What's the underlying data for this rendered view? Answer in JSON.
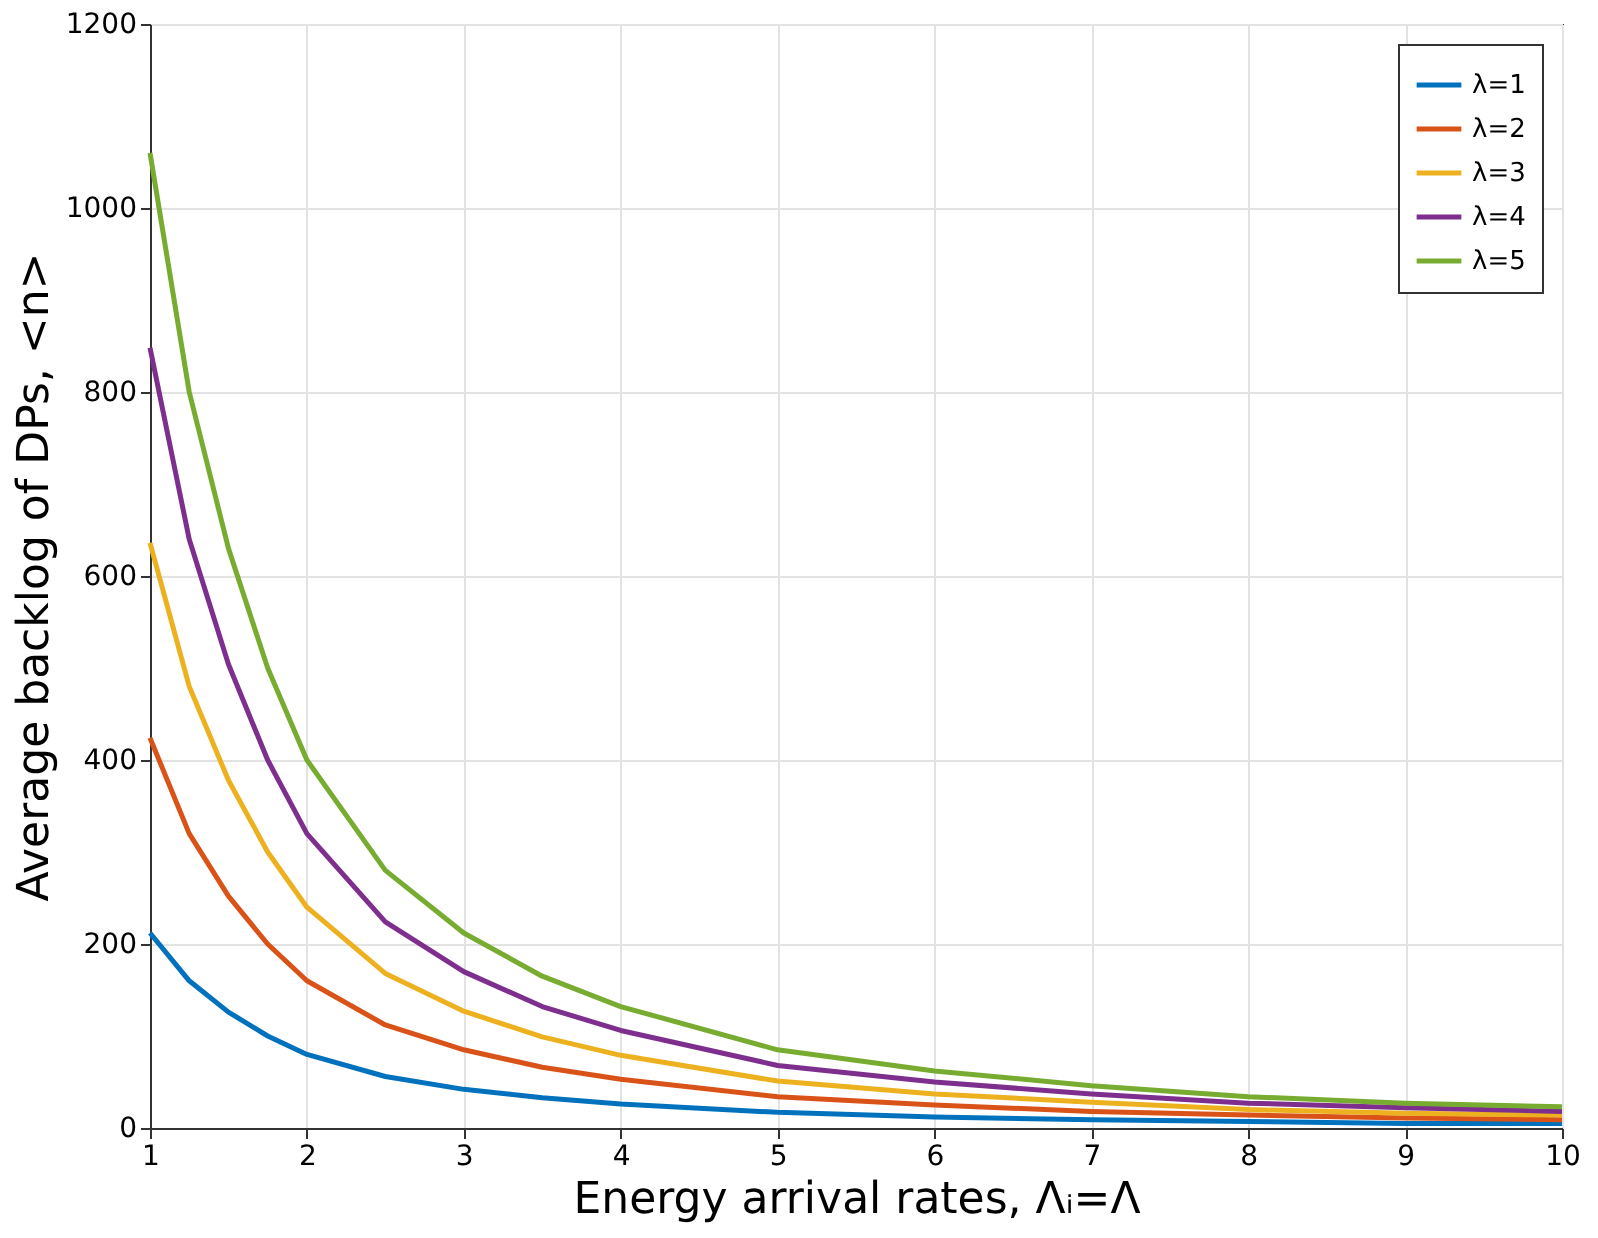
{
  "chart_data": {
    "type": "line",
    "xlabel": "Energy arrival rates, Λᵢ=Λ",
    "ylabel": "Average backlog of DPs, <n>",
    "x": [
      1,
      1.25,
      1.5,
      1.75,
      2,
      2.5,
      3,
      3.5,
      4,
      5,
      6,
      7,
      8,
      9,
      10
    ],
    "series": [
      {
        "name": "λ=1",
        "color": "#0072bd",
        "values": [
          212,
          160,
          126,
          100,
          80,
          56,
          42,
          33,
          26,
          17,
          12,
          9,
          7,
          5,
          5
        ]
      },
      {
        "name": "λ=2",
        "color": "#d95319",
        "values": [
          424,
          320,
          252,
          200,
          160,
          112,
          85,
          66,
          53,
          34,
          25,
          18,
          14,
          11,
          9
        ]
      },
      {
        "name": "λ=3",
        "color": "#edb120",
        "values": [
          636,
          480,
          378,
          300,
          240,
          168,
          127,
          99,
          79,
          51,
          37,
          28,
          20,
          16,
          14
        ]
      },
      {
        "name": "λ=4",
        "color": "#7e2f8e",
        "values": [
          848,
          640,
          504,
          400,
          320,
          224,
          170,
          132,
          106,
          68,
          50,
          37,
          27,
          22,
          18
        ]
      },
      {
        "name": "λ=5",
        "color": "#77ac30",
        "values": [
          1060,
          800,
          630,
          500,
          400,
          280,
          212,
          165,
          132,
          85,
          62,
          46,
          34,
          27,
          23
        ]
      }
    ],
    "xlim": [
      1,
      10
    ],
    "xticks": [
      1,
      2,
      3,
      4,
      5,
      6,
      7,
      8,
      9,
      10
    ],
    "ylim": [
      0,
      1200
    ],
    "yticks": [
      0,
      200,
      400,
      600,
      800,
      1000,
      1200
    ],
    "grid": true,
    "legend": "top right",
    "marker": "none",
    "line_style": "solid"
  }
}
